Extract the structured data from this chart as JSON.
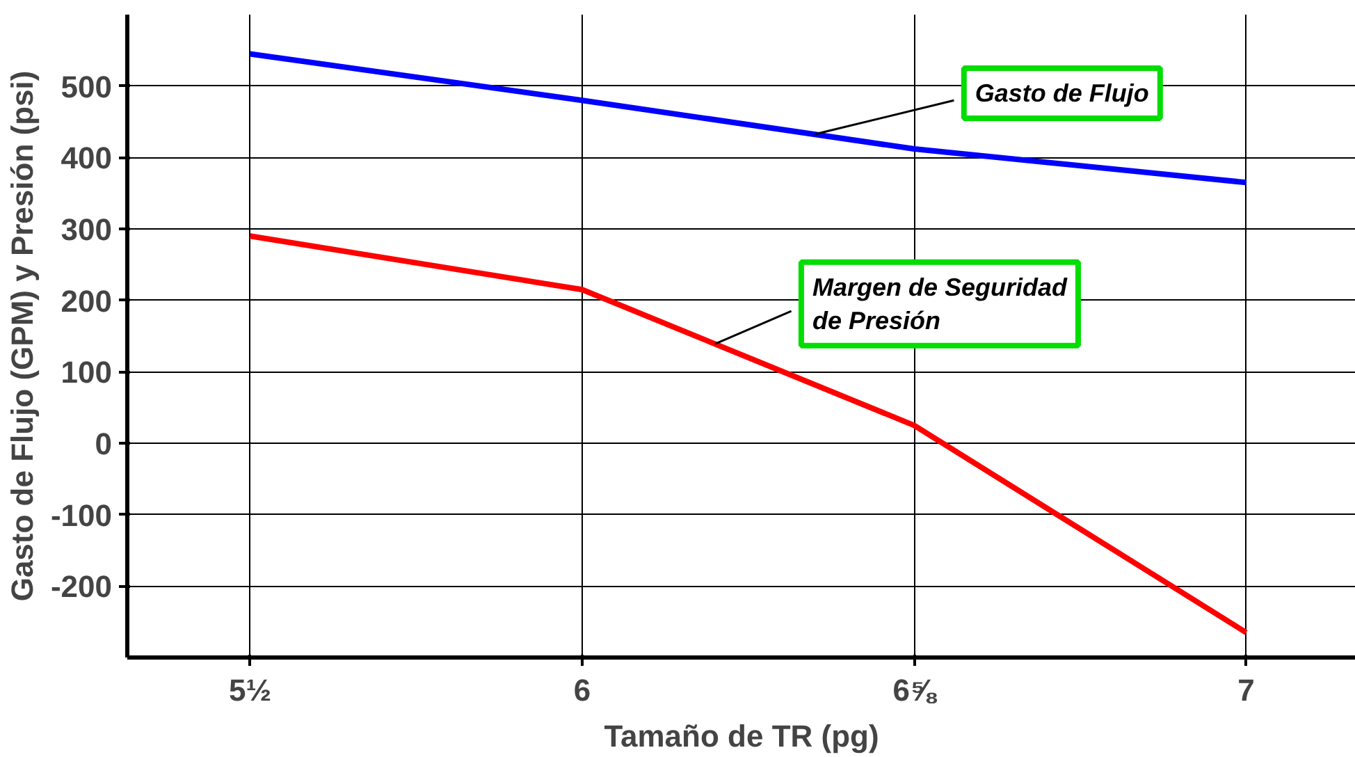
{
  "chart_data": {
    "type": "line",
    "xlabel": "Tamaño de TR (pg)",
    "ylabel": "Gasto de Flujo (GPM) y Presión (psi)",
    "categories": [
      "5½",
      "6",
      "6⅝",
      "7"
    ],
    "series": [
      {
        "name": "Gasto de Flujo",
        "color": "#0000ff",
        "values": [
          545,
          480,
          412,
          365
        ]
      },
      {
        "name": "Margen de Seguridad de Presión",
        "color": "#ff0000",
        "values": [
          290,
          215,
          25,
          -265
        ]
      }
    ],
    "ylim": [
      -300,
      600
    ],
    "yticks": [
      -200,
      -100,
      0,
      100,
      200,
      300,
      400,
      500
    ],
    "grid": true,
    "legend": false,
    "marker": "none",
    "line_style": "solid"
  }
}
